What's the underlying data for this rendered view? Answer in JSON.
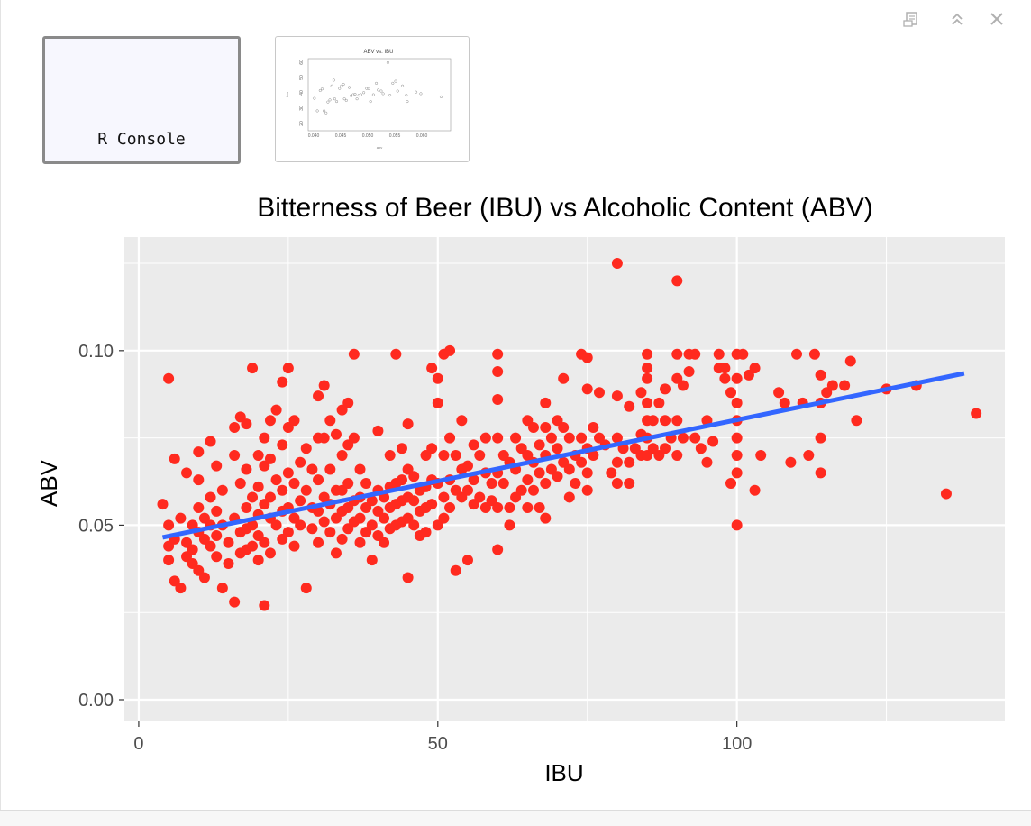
{
  "toolbar": {
    "save_icon": "save-image-icon",
    "expand_icon": "double-chevron-up-icon",
    "close_icon": "close-icon"
  },
  "thumbnails": [
    {
      "label": "R Console",
      "selected": true
    },
    {
      "title": "ABV vs. IBU",
      "xlabel": "abv",
      "ylabel": "ibu",
      "x_ticks": [
        "0.040",
        "0.045",
        "0.050",
        "0.055",
        "0.060"
      ],
      "y_ticks": [
        "20",
        "30",
        "40",
        "50",
        "60"
      ]
    }
  ],
  "colors": {
    "panel_bg": "#EBEBEB",
    "grid": "#FFFFFF",
    "point": "#FF2A1F",
    "trend": "#3366FF",
    "text": "#000000",
    "tick_text": "#4D4D4D"
  },
  "chart_data": {
    "type": "scatter",
    "title": "Bitterness of Beer (IBU) vs Alcoholic Content (ABV)",
    "xlabel": "IBU",
    "ylabel": "ABV",
    "xlim": [
      -2.4,
      144.8
    ],
    "ylim": [
      -0.0062,
      0.1325
    ],
    "x_ticks": [
      0,
      50,
      100
    ],
    "x_tick_labels": [
      "0",
      "50",
      "100"
    ],
    "y_ticks": [
      0.0,
      0.05,
      0.1
    ],
    "y_tick_labels": [
      "0.00",
      "0.05",
      "0.10"
    ],
    "grid": true,
    "legend": "none",
    "trendline": {
      "type": "linear",
      "x": [
        4,
        138
      ],
      "y": [
        0.0465,
        0.0935
      ]
    },
    "points": [
      [
        4,
        0.056
      ],
      [
        5,
        0.092
      ],
      [
        5,
        0.05
      ],
      [
        5,
        0.044
      ],
      [
        5,
        0.04
      ],
      [
        6,
        0.069
      ],
      [
        6,
        0.046
      ],
      [
        6,
        0.034
      ],
      [
        7,
        0.032
      ],
      [
        7,
        0.052
      ],
      [
        8,
        0.065
      ],
      [
        8,
        0.045
      ],
      [
        8,
        0.041
      ],
      [
        9,
        0.05
      ],
      [
        9,
        0.043
      ],
      [
        9,
        0.039
      ],
      [
        10,
        0.071
      ],
      [
        10,
        0.063
      ],
      [
        10,
        0.055
      ],
      [
        10,
        0.048
      ],
      [
        10,
        0.037
      ],
      [
        11,
        0.052
      ],
      [
        11,
        0.046
      ],
      [
        11,
        0.035
      ],
      [
        12,
        0.074
      ],
      [
        12,
        0.058
      ],
      [
        12,
        0.05
      ],
      [
        12,
        0.044
      ],
      [
        13,
        0.067
      ],
      [
        13,
        0.054
      ],
      [
        13,
        0.047
      ],
      [
        13,
        0.041
      ],
      [
        14,
        0.032
      ],
      [
        14,
        0.06
      ],
      [
        14,
        0.05
      ],
      [
        15,
        0.045
      ],
      [
        15,
        0.039
      ],
      [
        16,
        0.078
      ],
      [
        16,
        0.07
      ],
      [
        16,
        0.052
      ],
      [
        16,
        0.028
      ],
      [
        17,
        0.081
      ],
      [
        17,
        0.062
      ],
      [
        17,
        0.048
      ],
      [
        17,
        0.042
      ],
      [
        18,
        0.079
      ],
      [
        18,
        0.066
      ],
      [
        18,
        0.055
      ],
      [
        18,
        0.049
      ],
      [
        18,
        0.043
      ],
      [
        19,
        0.095
      ],
      [
        19,
        0.058
      ],
      [
        19,
        0.05
      ],
      [
        19,
        0.044
      ],
      [
        20,
        0.07
      ],
      [
        20,
        0.061
      ],
      [
        20,
        0.053
      ],
      [
        20,
        0.047
      ],
      [
        20,
        0.04
      ],
      [
        21,
        0.075
      ],
      [
        21,
        0.067
      ],
      [
        21,
        0.056
      ],
      [
        21,
        0.027
      ],
      [
        21,
        0.045
      ],
      [
        22,
        0.08
      ],
      [
        22,
        0.069
      ],
      [
        22,
        0.058
      ],
      [
        22,
        0.052
      ],
      [
        22,
        0.042
      ],
      [
        23,
        0.083
      ],
      [
        23,
        0.063
      ],
      [
        23,
        0.05
      ],
      [
        24,
        0.091
      ],
      [
        24,
        0.073
      ],
      [
        24,
        0.06
      ],
      [
        24,
        0.054
      ],
      [
        24,
        0.046
      ],
      [
        25,
        0.095
      ],
      [
        25,
        0.078
      ],
      [
        25,
        0.065
      ],
      [
        25,
        0.055
      ],
      [
        25,
        0.048
      ],
      [
        26,
        0.08
      ],
      [
        26,
        0.062
      ],
      [
        26,
        0.052
      ],
      [
        26,
        0.044
      ],
      [
        27,
        0.068
      ],
      [
        27,
        0.057
      ],
      [
        27,
        0.05
      ],
      [
        28,
        0.072
      ],
      [
        28,
        0.06
      ],
      [
        28,
        0.032
      ],
      [
        29,
        0.066
      ],
      [
        29,
        0.055
      ],
      [
        29,
        0.049
      ],
      [
        30,
        0.087
      ],
      [
        30,
        0.075
      ],
      [
        30,
        0.063
      ],
      [
        30,
        0.054
      ],
      [
        30,
        0.045
      ],
      [
        31,
        0.09
      ],
      [
        31,
        0.075
      ],
      [
        31,
        0.058
      ],
      [
        31,
        0.051
      ],
      [
        32,
        0.08
      ],
      [
        32,
        0.066
      ],
      [
        32,
        0.056
      ],
      [
        32,
        0.048
      ],
      [
        33,
        0.076
      ],
      [
        33,
        0.06
      ],
      [
        33,
        0.052
      ],
      [
        33,
        0.042
      ],
      [
        34,
        0.083
      ],
      [
        34,
        0.07
      ],
      [
        34,
        0.06
      ],
      [
        34,
        0.054
      ],
      [
        34,
        0.046
      ],
      [
        35,
        0.085
      ],
      [
        35,
        0.073
      ],
      [
        35,
        0.062
      ],
      [
        35,
        0.055
      ],
      [
        35,
        0.049
      ],
      [
        36,
        0.099
      ],
      [
        36,
        0.075
      ],
      [
        36,
        0.057
      ],
      [
        36,
        0.051
      ],
      [
        37,
        0.066
      ],
      [
        37,
        0.058
      ],
      [
        37,
        0.052
      ],
      [
        37,
        0.045
      ],
      [
        38,
        0.062
      ],
      [
        38,
        0.055
      ],
      [
        38,
        0.048
      ],
      [
        39,
        0.057
      ],
      [
        39,
        0.05
      ],
      [
        39,
        0.04
      ],
      [
        40,
        0.077
      ],
      [
        40,
        0.06
      ],
      [
        40,
        0.054
      ],
      [
        40,
        0.047
      ],
      [
        41,
        0.058
      ],
      [
        41,
        0.052
      ],
      [
        41,
        0.045
      ],
      [
        42,
        0.07
      ],
      [
        42,
        0.061
      ],
      [
        42,
        0.055
      ],
      [
        42,
        0.049
      ],
      [
        43,
        0.099
      ],
      [
        43,
        0.062
      ],
      [
        43,
        0.056
      ],
      [
        43,
        0.05
      ],
      [
        44,
        0.072
      ],
      [
        44,
        0.063
      ],
      [
        44,
        0.057
      ],
      [
        44,
        0.051
      ],
      [
        45,
        0.079
      ],
      [
        45,
        0.066
      ],
      [
        45,
        0.058
      ],
      [
        45,
        0.052
      ],
      [
        45,
        0.035
      ],
      [
        46,
        0.064
      ],
      [
        46,
        0.057
      ],
      [
        46,
        0.05
      ],
      [
        47,
        0.06
      ],
      [
        47,
        0.054
      ],
      [
        47,
        0.047
      ],
      [
        48,
        0.07
      ],
      [
        48,
        0.061
      ],
      [
        48,
        0.055
      ],
      [
        48,
        0.048
      ],
      [
        49,
        0.095
      ],
      [
        49,
        0.072
      ],
      [
        49,
        0.063
      ],
      [
        49,
        0.056
      ],
      [
        50,
        0.092
      ],
      [
        50,
        0.085
      ],
      [
        50,
        0.062
      ],
      [
        50,
        0.05
      ],
      [
        51,
        0.099
      ],
      [
        51,
        0.07
      ],
      [
        51,
        0.058
      ],
      [
        51,
        0.052
      ],
      [
        52,
        0.1
      ],
      [
        52,
        0.075
      ],
      [
        52,
        0.063
      ],
      [
        52,
        0.055
      ],
      [
        53,
        0.07
      ],
      [
        53,
        0.06
      ],
      [
        53,
        0.037
      ],
      [
        54,
        0.08
      ],
      [
        54,
        0.066
      ],
      [
        54,
        0.058
      ],
      [
        55,
        0.067
      ],
      [
        55,
        0.06
      ],
      [
        55,
        0.04
      ],
      [
        56,
        0.073
      ],
      [
        56,
        0.063
      ],
      [
        56,
        0.056
      ],
      [
        57,
        0.07
      ],
      [
        57,
        0.058
      ],
      [
        58,
        0.075
      ],
      [
        58,
        0.065
      ],
      [
        58,
        0.055
      ],
      [
        59,
        0.062
      ],
      [
        59,
        0.057
      ],
      [
        60,
        0.099
      ],
      [
        60,
        0.094
      ],
      [
        60,
        0.086
      ],
      [
        60,
        0.075
      ],
      [
        60,
        0.065
      ],
      [
        60,
        0.055
      ],
      [
        60,
        0.043
      ],
      [
        61,
        0.07
      ],
      [
        61,
        0.062
      ],
      [
        62,
        0.068
      ],
      [
        62,
        0.055
      ],
      [
        62,
        0.05
      ],
      [
        63,
        0.075
      ],
      [
        63,
        0.066
      ],
      [
        63,
        0.058
      ],
      [
        64,
        0.072
      ],
      [
        64,
        0.06
      ],
      [
        65,
        0.08
      ],
      [
        65,
        0.07
      ],
      [
        65,
        0.063
      ],
      [
        65,
        0.055
      ],
      [
        66,
        0.078
      ],
      [
        66,
        0.068
      ],
      [
        66,
        0.06
      ],
      [
        67,
        0.073
      ],
      [
        67,
        0.065
      ],
      [
        67,
        0.055
      ],
      [
        68,
        0.085
      ],
      [
        68,
        0.078
      ],
      [
        68,
        0.07
      ],
      [
        68,
        0.062
      ],
      [
        68,
        0.052
      ],
      [
        69,
        0.075
      ],
      [
        69,
        0.066
      ],
      [
        70,
        0.08
      ],
      [
        70,
        0.072
      ],
      [
        70,
        0.064
      ],
      [
        71,
        0.092
      ],
      [
        71,
        0.078
      ],
      [
        71,
        0.068
      ],
      [
        72,
        0.075
      ],
      [
        72,
        0.066
      ],
      [
        72,
        0.058
      ],
      [
        73,
        0.07
      ],
      [
        73,
        0.062
      ],
      [
        74,
        0.099
      ],
      [
        74,
        0.075
      ],
      [
        74,
        0.068
      ],
      [
        75,
        0.098
      ],
      [
        75,
        0.089
      ],
      [
        75,
        0.072
      ],
      [
        75,
        0.065
      ],
      [
        75,
        0.06
      ],
      [
        76,
        0.078
      ],
      [
        76,
        0.07
      ],
      [
        77,
        0.088
      ],
      [
        77,
        0.075
      ],
      [
        78,
        0.073
      ],
      [
        79,
        0.065
      ],
      [
        80,
        0.125
      ],
      [
        80,
        0.087
      ],
      [
        80,
        0.075
      ],
      [
        80,
        0.068
      ],
      [
        80,
        0.062
      ],
      [
        81,
        0.072
      ],
      [
        82,
        0.084
      ],
      [
        82,
        0.068
      ],
      [
        82,
        0.062
      ],
      [
        83,
        0.072
      ],
      [
        84,
        0.088
      ],
      [
        84,
        0.076
      ],
      [
        84,
        0.07
      ],
      [
        85,
        0.099
      ],
      [
        85,
        0.095
      ],
      [
        85,
        0.092
      ],
      [
        85,
        0.085
      ],
      [
        85,
        0.08
      ],
      [
        85,
        0.075
      ],
      [
        85,
        0.07
      ],
      [
        86,
        0.08
      ],
      [
        86,
        0.072
      ],
      [
        87,
        0.085
      ],
      [
        87,
        0.07
      ],
      [
        88,
        0.089
      ],
      [
        88,
        0.08
      ],
      [
        88,
        0.072
      ],
      [
        89,
        0.075
      ],
      [
        90,
        0.12
      ],
      [
        90,
        0.099
      ],
      [
        90,
        0.092
      ],
      [
        90,
        0.08
      ],
      [
        90,
        0.07
      ],
      [
        91,
        0.09
      ],
      [
        91,
        0.075
      ],
      [
        92,
        0.099
      ],
      [
        92,
        0.094
      ],
      [
        93,
        0.099
      ],
      [
        93,
        0.075
      ],
      [
        94,
        0.072
      ],
      [
        95,
        0.08
      ],
      [
        95,
        0.068
      ],
      [
        96,
        0.074
      ],
      [
        97,
        0.099
      ],
      [
        97,
        0.095
      ],
      [
        98,
        0.095
      ],
      [
        98,
        0.092
      ],
      [
        99,
        0.088
      ],
      [
        99,
        0.062
      ],
      [
        100,
        0.099
      ],
      [
        100,
        0.092
      ],
      [
        100,
        0.085
      ],
      [
        100,
        0.08
      ],
      [
        100,
        0.075
      ],
      [
        100,
        0.07
      ],
      [
        100,
        0.065
      ],
      [
        100,
        0.05
      ],
      [
        101,
        0.099
      ],
      [
        102,
        0.093
      ],
      [
        103,
        0.095
      ],
      [
        103,
        0.06
      ],
      [
        104,
        0.07
      ],
      [
        107,
        0.088
      ],
      [
        108,
        0.085
      ],
      [
        109,
        0.068
      ],
      [
        110,
        0.099
      ],
      [
        111,
        0.085
      ],
      [
        112,
        0.07
      ],
      [
        113,
        0.099
      ],
      [
        114,
        0.093
      ],
      [
        114,
        0.085
      ],
      [
        114,
        0.075
      ],
      [
        114,
        0.065
      ],
      [
        115,
        0.088
      ],
      [
        116,
        0.09
      ],
      [
        118,
        0.09
      ],
      [
        119,
        0.097
      ],
      [
        120,
        0.08
      ],
      [
        125,
        0.089
      ],
      [
        130,
        0.09
      ],
      [
        135,
        0.059
      ],
      [
        140,
        0.082
      ]
    ]
  }
}
